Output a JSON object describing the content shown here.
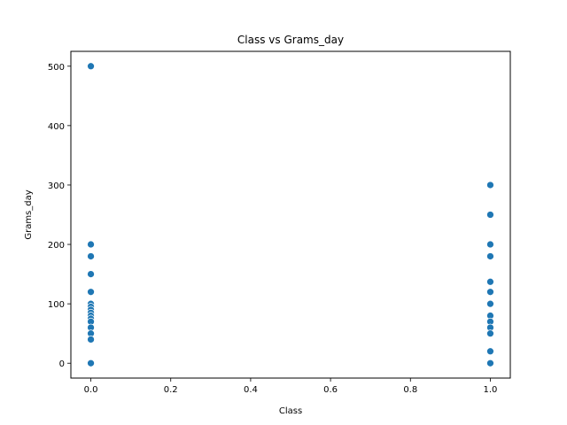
{
  "chart_data": {
    "type": "scatter",
    "title": "Class vs Grams_day",
    "xlabel": "Class",
    "ylabel": "Grams_day",
    "xlim": [
      -0.05,
      1.05
    ],
    "ylim": [
      -25,
      525
    ],
    "xticks": [
      0.0,
      0.2,
      0.4,
      0.6,
      0.8,
      1.0
    ],
    "xtick_labels": [
      "0.0",
      "0.2",
      "0.4",
      "0.6",
      "0.8",
      "1.0"
    ],
    "yticks": [
      0,
      100,
      200,
      300,
      400,
      500
    ],
    "ytick_labels": [
      "0",
      "100",
      "200",
      "300",
      "400",
      "500"
    ],
    "grid": false,
    "marker_color": "#1f77b4",
    "points": [
      {
        "x": 0,
        "y": 500
      },
      {
        "x": 0,
        "y": 200
      },
      {
        "x": 0,
        "y": 180
      },
      {
        "x": 0,
        "y": 150
      },
      {
        "x": 0,
        "y": 120
      },
      {
        "x": 0,
        "y": 100
      },
      {
        "x": 0,
        "y": 95
      },
      {
        "x": 0,
        "y": 90
      },
      {
        "x": 0,
        "y": 85
      },
      {
        "x": 0,
        "y": 80
      },
      {
        "x": 0,
        "y": 75
      },
      {
        "x": 0,
        "y": 70
      },
      {
        "x": 0,
        "y": 60
      },
      {
        "x": 0,
        "y": 50
      },
      {
        "x": 0,
        "y": 40
      },
      {
        "x": 0,
        "y": 0
      },
      {
        "x": 1,
        "y": 300
      },
      {
        "x": 1,
        "y": 250
      },
      {
        "x": 1,
        "y": 200
      },
      {
        "x": 1,
        "y": 180
      },
      {
        "x": 1,
        "y": 137
      },
      {
        "x": 1,
        "y": 120
      },
      {
        "x": 1,
        "y": 100
      },
      {
        "x": 1,
        "y": 80
      },
      {
        "x": 1,
        "y": 70
      },
      {
        "x": 1,
        "y": 60
      },
      {
        "x": 1,
        "y": 50
      },
      {
        "x": 1,
        "y": 20
      },
      {
        "x": 1,
        "y": 0
      }
    ]
  }
}
